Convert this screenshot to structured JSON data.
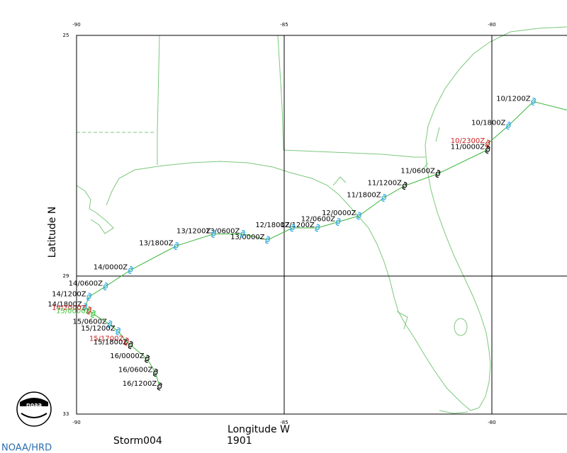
{
  "map": {
    "lon_ticks": [
      -90,
      -85,
      -80
    ],
    "lat_ticks": [
      33,
      29,
      25
    ],
    "x_label": "Longitude W",
    "y_label": "Latitude N",
    "storm": "Storm004",
    "year": "1901",
    "credit": "NOAA/HRD",
    "logo": "noaa",
    "track_color": "#3cb43c",
    "points": [
      {
        "label": "10/1200Z",
        "lon": -79.0,
        "lat": 26.1,
        "color": "#2aa6e0",
        "label_color": "#000000"
      },
      {
        "label": "10/1800Z",
        "lon": -79.6,
        "lat": 26.5,
        "color": "#2aa6e0",
        "label_color": "#000000"
      },
      {
        "label": "10/2300Z",
        "lon": -80.1,
        "lat": 26.8,
        "color": "#d02020",
        "label_color": "#d02020"
      },
      {
        "label": "11/0000Z",
        "lon": -80.1,
        "lat": 26.9,
        "color": "#000000",
        "label_color": "#000000"
      },
      {
        "label": "11/0600Z",
        "lon": -81.3,
        "lat": 27.3,
        "color": "#000000",
        "label_color": "#000000"
      },
      {
        "label": "11/1200Z",
        "lon": -82.1,
        "lat": 27.5,
        "color": "#000000",
        "label_color": "#000000"
      },
      {
        "label": "11/1800Z",
        "lon": -82.6,
        "lat": 27.7,
        "color": "#2aa6e0",
        "label_color": "#000000"
      },
      {
        "label": "12/0000Z",
        "lon": -83.2,
        "lat": 28.0,
        "color": "#2aa6e0",
        "label_color": "#000000"
      },
      {
        "label": "12/0600Z",
        "lon": -83.7,
        "lat": 28.1,
        "color": "#2aa6e0",
        "label_color": "#000000"
      },
      {
        "label": "12/1200Z",
        "lon": -84.2,
        "lat": 28.2,
        "color": "#2aa6e0",
        "label_color": "#000000"
      },
      {
        "label": "12/1800Z",
        "lon": -84.8,
        "lat": 28.2,
        "color": "#2aa6e0",
        "label_color": "#000000"
      },
      {
        "label": "13/0000Z",
        "lon": -85.4,
        "lat": 28.4,
        "color": "#2aa6e0",
        "label_color": "#000000"
      },
      {
        "label": "13/0600Z",
        "lon": -86.0,
        "lat": 28.3,
        "color": "#2aa6e0",
        "label_color": "#000000"
      },
      {
        "label": "13/1200Z",
        "lon": -86.7,
        "lat": 28.3,
        "color": "#2aa6e0",
        "label_color": "#000000"
      },
      {
        "label": "13/1800Z",
        "lon": -87.6,
        "lat": 28.5,
        "color": "#2aa6e0",
        "label_color": "#000000"
      },
      {
        "label": "14/0000Z",
        "lon": -88.7,
        "lat": 28.9,
        "color": "#2aa6e0",
        "label_color": "#000000"
      },
      {
        "label": "14/0600Z",
        "lon": -89.3,
        "lat": 29.3,
        "color": "#2aa6e0",
        "label_color": "#000000"
      },
      {
        "label": "14/1200Z",
        "lon": -89.7,
        "lat": 29.6,
        "color": "#2aa6e0",
        "label_color": "#000000"
      },
      {
        "label": "14/1800Z",
        "lon": -89.8,
        "lat": 29.9,
        "color": "#2aa6e0",
        "label_color": "#000000"
      },
      {
        "label": "14/2000Z",
        "lon": -89.7,
        "lat": 30.0,
        "color": "#d02020",
        "label_color": "#d02020"
      },
      {
        "label": "15/0000Z",
        "lon": -89.6,
        "lat": 30.1,
        "color": "#3cc83c",
        "label_color": "#3cc83c"
      },
      {
        "label": "15/0600Z",
        "lon": -89.2,
        "lat": 30.4,
        "color": "#2aa6e0",
        "label_color": "#000000"
      },
      {
        "label": "15/1200Z",
        "lon": -89.0,
        "lat": 30.6,
        "color": "#2aa6e0",
        "label_color": "#000000"
      },
      {
        "label": "15/1700Z",
        "lon": -88.8,
        "lat": 30.9,
        "color": "#d02020",
        "label_color": "#d02020"
      },
      {
        "label": "15/1800Z",
        "lon": -88.7,
        "lat": 31.0,
        "color": "#000000",
        "label_color": "#000000"
      },
      {
        "label": "16/0000Z",
        "lon": -88.3,
        "lat": 31.4,
        "color": "#000000",
        "label_color": "#000000"
      },
      {
        "label": "16/0600Z",
        "lon": -88.1,
        "lat": 31.8,
        "color": "#000000",
        "label_color": "#000000"
      },
      {
        "label": "16/1200Z",
        "lon": -88.0,
        "lat": 32.2,
        "color": "#000000",
        "label_color": "#000000"
      }
    ]
  }
}
